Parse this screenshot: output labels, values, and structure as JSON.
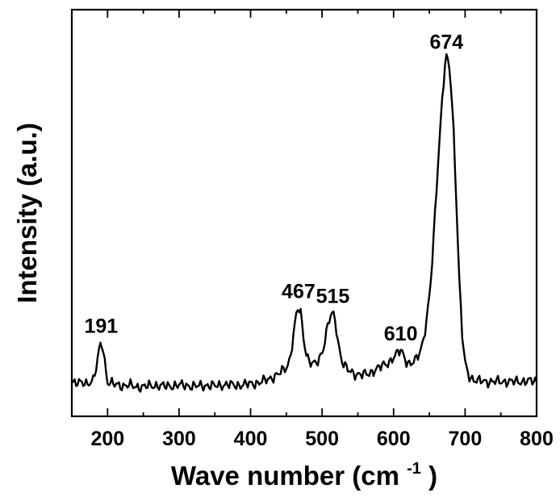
{
  "chart_data": {
    "type": "line",
    "title": "",
    "xlabel_main": "Wave number (cm",
    "xlabel_sup": "-1",
    "xlabel_tail": ")",
    "ylabel": "Intensity (a.u.)",
    "xlim": [
      150,
      800
    ],
    "ylim": [
      0,
      100
    ],
    "x_ticks": [
      200,
      300,
      400,
      500,
      600,
      700,
      800
    ],
    "x_tick_labels": [
      "200",
      "300",
      "400",
      "500",
      "600",
      "700",
      "800"
    ],
    "grid": false,
    "line_color": "#000000",
    "peaks": [
      {
        "x": 191,
        "label": "191"
      },
      {
        "x": 467,
        "label": "467"
      },
      {
        "x": 515,
        "label": "515"
      },
      {
        "x": 610,
        "label": "610"
      },
      {
        "x": 674,
        "label": "674"
      }
    ],
    "series": [
      {
        "points": [
          [
            150,
            8.6
          ],
          [
            160,
            8.2
          ],
          [
            170,
            8.0
          ],
          [
            180,
            9.0
          ],
          [
            185,
            12.5
          ],
          [
            188,
            16.0
          ],
          [
            191,
            18.2
          ],
          [
            194,
            16.5
          ],
          [
            197,
            12.0
          ],
          [
            200,
            8.5
          ],
          [
            210,
            7.8
          ],
          [
            220,
            7.5
          ],
          [
            230,
            7.7
          ],
          [
            240,
            7.2
          ],
          [
            250,
            7.3
          ],
          [
            260,
            7.5
          ],
          [
            270,
            7.6
          ],
          [
            280,
            7.4
          ],
          [
            290,
            7.5
          ],
          [
            300,
            7.7
          ],
          [
            310,
            7.6
          ],
          [
            320,
            7.4
          ],
          [
            330,
            7.5
          ],
          [
            340,
            7.6
          ],
          [
            350,
            7.5
          ],
          [
            360,
            7.7
          ],
          [
            370,
            7.8
          ],
          [
            380,
            7.6
          ],
          [
            390,
            7.8
          ],
          [
            400,
            8.0
          ],
          [
            410,
            8.2
          ],
          [
            420,
            8.8
          ],
          [
            430,
            9.5
          ],
          [
            440,
            10.5
          ],
          [
            450,
            12.0
          ],
          [
            455,
            14.0
          ],
          [
            460,
            20.0
          ],
          [
            464,
            25.0
          ],
          [
            467,
            26.7
          ],
          [
            470,
            25.5
          ],
          [
            473,
            21.0
          ],
          [
            477,
            16.0
          ],
          [
            482,
            13.5
          ],
          [
            487,
            12.8
          ],
          [
            492,
            13.0
          ],
          [
            497,
            14.5
          ],
          [
            502,
            17.0
          ],
          [
            507,
            21.5
          ],
          [
            511,
            24.3
          ],
          [
            515,
            25.5
          ],
          [
            519,
            23.0
          ],
          [
            523,
            17.5
          ],
          [
            528,
            13.5
          ],
          [
            535,
            11.5
          ],
          [
            545,
            10.5
          ],
          [
            555,
            10.2
          ],
          [
            565,
            10.5
          ],
          [
            575,
            11.5
          ],
          [
            585,
            12.5
          ],
          [
            595,
            13.5
          ],
          [
            602,
            14.8
          ],
          [
            607,
            15.8
          ],
          [
            610,
            16.3
          ],
          [
            614,
            15.2
          ],
          [
            618,
            13.5
          ],
          [
            622,
            12.8
          ],
          [
            627,
            13.0
          ],
          [
            632,
            14.2
          ],
          [
            638,
            16.5
          ],
          [
            643,
            20.0
          ],
          [
            648,
            26.0
          ],
          [
            653,
            35.0
          ],
          [
            658,
            50.0
          ],
          [
            663,
            65.0
          ],
          [
            668,
            78.0
          ],
          [
            672,
            86.5
          ],
          [
            674,
            88.0
          ],
          [
            677,
            87.0
          ],
          [
            680,
            82.0
          ],
          [
            684,
            70.0
          ],
          [
            688,
            52.0
          ],
          [
            692,
            33.0
          ],
          [
            696,
            20.0
          ],
          [
            700,
            13.0
          ],
          [
            705,
            10.0
          ],
          [
            712,
            9.0
          ],
          [
            720,
            8.7
          ],
          [
            730,
            8.5
          ],
          [
            740,
            8.6
          ],
          [
            750,
            8.5
          ],
          [
            760,
            8.6
          ],
          [
            770,
            8.5
          ],
          [
            780,
            8.6
          ],
          [
            790,
            8.7
          ],
          [
            800,
            8.6
          ]
        ]
      }
    ]
  }
}
